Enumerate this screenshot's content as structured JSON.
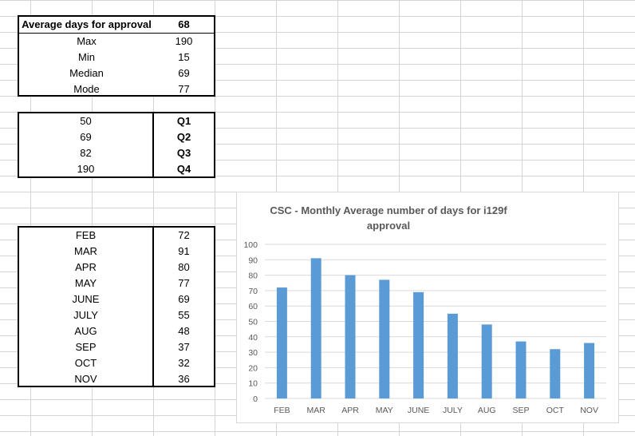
{
  "summary": {
    "header": {
      "label": "Average days for approval",
      "value": "68"
    },
    "rows": [
      {
        "label": "Max",
        "value": "190"
      },
      {
        "label": "Min",
        "value": "15"
      },
      {
        "label": "Median",
        "value": "69"
      },
      {
        "label": "Mode",
        "value": "77"
      }
    ]
  },
  "quartiles": [
    {
      "value": "50",
      "label": "Q1"
    },
    {
      "value": "69",
      "label": "Q2"
    },
    {
      "value": "82",
      "label": "Q3"
    },
    {
      "value": "190",
      "label": "Q4"
    }
  ],
  "monthly": [
    {
      "month": "FEB",
      "value": "72"
    },
    {
      "month": "MAR",
      "value": "91"
    },
    {
      "month": "APR",
      "value": "80"
    },
    {
      "month": "MAY",
      "value": "77"
    },
    {
      "month": "JUNE",
      "value": "69"
    },
    {
      "month": "JULY",
      "value": "55"
    },
    {
      "month": "AUG",
      "value": "48"
    },
    {
      "month": "SEP",
      "value": "37"
    },
    {
      "month": "OCT",
      "value": "32"
    },
    {
      "month": "NOV",
      "value": "36"
    }
  ],
  "chart_data": {
    "type": "bar",
    "title": "CSC - Monthly Average number of days for i129f approval",
    "title_lines": [
      "CSC - Monthly Average number of days for i129f",
      "approval"
    ],
    "categories": [
      "FEB",
      "MAR",
      "APR",
      "MAY",
      "JUNE",
      "JULY",
      "AUG",
      "SEP",
      "OCT",
      "NOV"
    ],
    "values": [
      72,
      91,
      80,
      77,
      69,
      55,
      48,
      37,
      32,
      36
    ],
    "ylim": [
      0,
      100
    ],
    "yticks": [
      0,
      10,
      20,
      30,
      40,
      50,
      60,
      70,
      80,
      90,
      100
    ],
    "grid": true,
    "legend": "none",
    "bar_color": "#5b9bd5",
    "grid_color": "#d9d9d9"
  }
}
